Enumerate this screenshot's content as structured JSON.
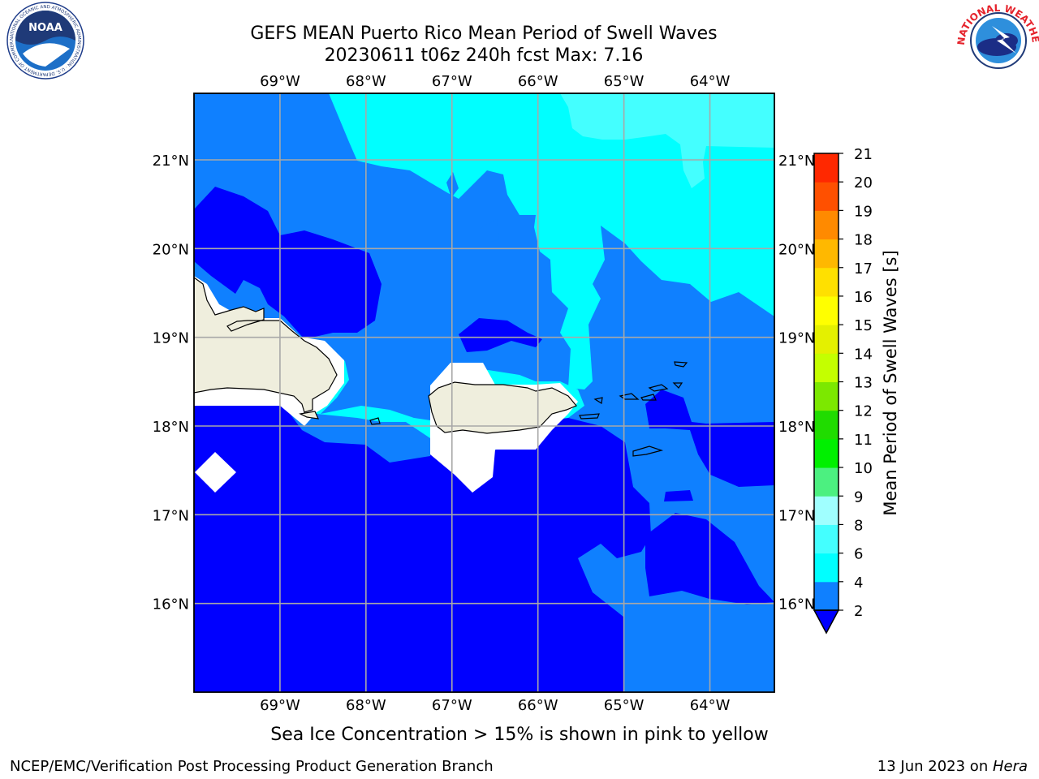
{
  "title": {
    "line1": "GEFS MEAN Puerto Rico Mean Period of Swell Waves",
    "line2": "20230611 t06z 240h fcst   Max: 7.16"
  },
  "logos": {
    "left": {
      "icon": "noaa-logo",
      "text": "NOAA",
      "ring_text": "NATIONAL OCEANIC AND ATMOSPHERIC ADMINISTRATION · U.S. DEPARTMENT OF COMMERCE"
    },
    "right": {
      "icon": "nws-logo",
      "ring_text": "NATIONAL WEATHER SERVICE"
    }
  },
  "map": {
    "lon_labels": [
      "69°W",
      "68°W",
      "67°W",
      "66°W",
      "65°W",
      "64°W"
    ],
    "lat_labels": [
      "21°N",
      "20°N",
      "19°N",
      "18°N",
      "17°N",
      "16°N"
    ],
    "lon_range": [
      -70.0,
      -63.25
    ],
    "lat_range": [
      15.0,
      21.75
    ],
    "grid": true,
    "land_color": "#efeedd",
    "coast_color": "#000000"
  },
  "colorbar": {
    "label": "Mean Period of Swell Waves [s]",
    "ticks": [
      "2",
      "4",
      "6",
      "8",
      "9",
      "10",
      "11",
      "12",
      "13",
      "14",
      "15",
      "16",
      "17",
      "18",
      "19",
      "20",
      "21"
    ],
    "colors": [
      "#0f80ff",
      "#00ffff",
      "#44ffff",
      "#a0ffff",
      "#4cf080",
      "#00f000",
      "#20dc00",
      "#7ce800",
      "#c4ff00",
      "#e4f000",
      "#ffff00",
      "#ffe000",
      "#ffb800",
      "#ff8a00",
      "#ff5000",
      "#ff2800"
    ],
    "under_color": "#0000ff",
    "extend": "min"
  },
  "field_colors": {
    "deep": "#0000ff",
    "mid": "#0f80ff",
    "light": "#00ffff",
    "lighter": "#44ffff"
  },
  "footer": {
    "note": "Sea Ice Concentration > 15% is shown in pink to yellow",
    "left": "NCEP/EMC/Verification Post Processing Product Generation Branch",
    "right_prefix": "13 Jun 2023 on ",
    "right_host": "Hera"
  }
}
